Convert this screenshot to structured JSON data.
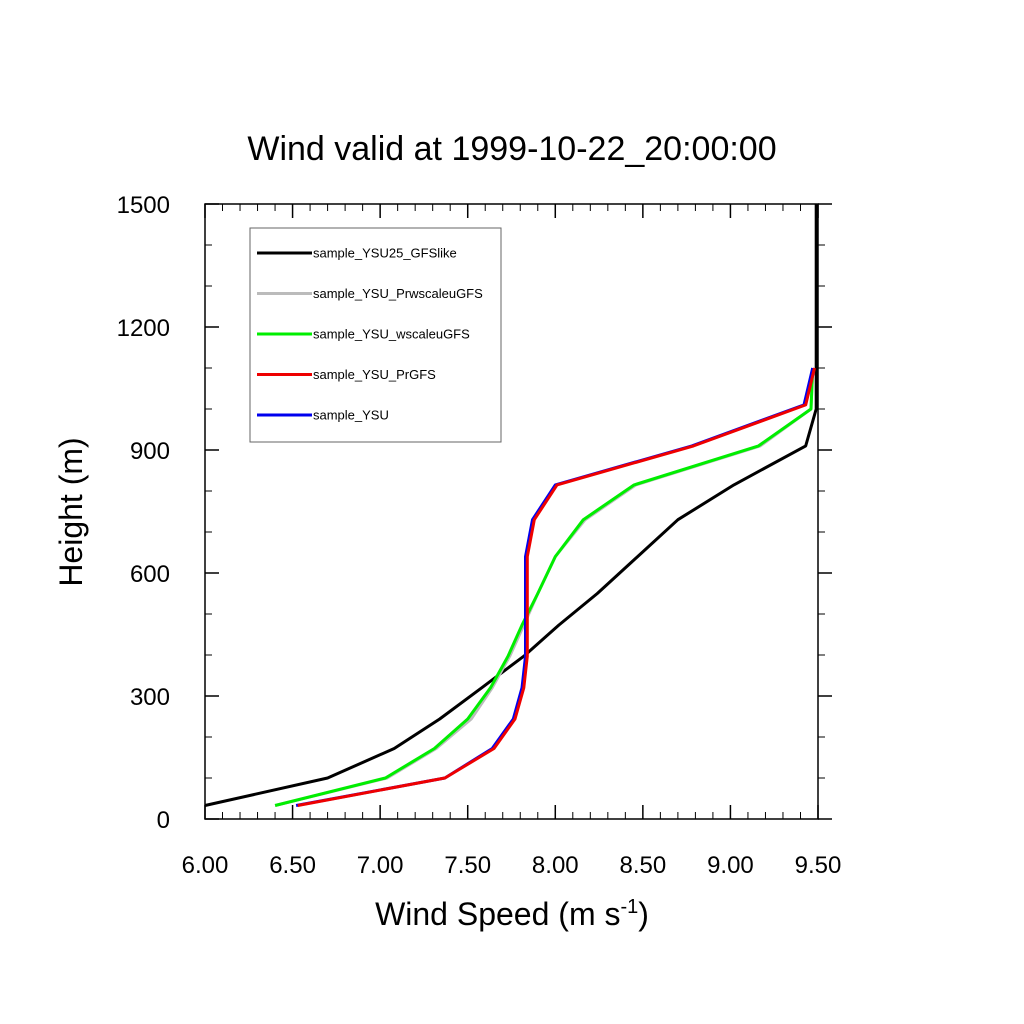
{
  "chart_data": {
    "type": "line",
    "title": "Wind valid at 1999-10-22_20:00:00",
    "xlabel": "Wind Speed (m s",
    "xlabel_sup": "-1",
    "xlabel_end": ")",
    "ylabel": "Height (m)",
    "xlim": [
      6.0,
      9.5
    ],
    "ylim": [
      0,
      1500
    ],
    "x_ticks": [
      6.0,
      6.5,
      7.0,
      7.5,
      8.0,
      8.5,
      9.0,
      9.5
    ],
    "x_tick_labels": [
      "6.00",
      "6.50",
      "7.00",
      "7.50",
      "8.00",
      "8.50",
      "9.00",
      "9.50"
    ],
    "y_ticks": [
      0,
      300,
      600,
      900,
      1200,
      1500
    ],
    "y_tick_labels": [
      "0",
      "300",
      "600",
      "900",
      "1200",
      "1500"
    ],
    "legend_position": "top-left",
    "grid": false,
    "series": [
      {
        "name": "sample_YSU25_GFSlike",
        "color": "#000000",
        "points": [
          [
            6.0,
            33
          ],
          [
            6.7,
            100
          ],
          [
            7.08,
            172
          ],
          [
            7.34,
            244
          ],
          [
            7.58,
            320
          ],
          [
            7.82,
            397
          ],
          [
            8.02,
            473
          ],
          [
            8.24,
            550
          ],
          [
            8.47,
            640
          ],
          [
            8.7,
            730
          ],
          [
            9.02,
            815
          ],
          [
            9.43,
            910
          ],
          [
            9.49,
            1000
          ],
          [
            9.49,
            1100
          ],
          [
            9.49,
            1200
          ],
          [
            9.49,
            1300
          ],
          [
            9.49,
            1400
          ],
          [
            9.49,
            1500
          ]
        ]
      },
      {
        "name": "sample_YSU_PrwscaleuGFS",
        "color": "#bbbbbb",
        "points": [
          [
            6.4,
            33
          ],
          [
            7.04,
            100
          ],
          [
            7.32,
            172
          ],
          [
            7.52,
            244
          ],
          [
            7.64,
            320
          ],
          [
            7.74,
            397
          ],
          [
            7.82,
            473
          ],
          [
            7.9,
            550
          ],
          [
            8.0,
            640
          ],
          [
            8.17,
            730
          ],
          [
            8.46,
            815
          ],
          [
            9.17,
            910
          ],
          [
            9.46,
            1000
          ],
          [
            9.47,
            1100
          ]
        ]
      },
      {
        "name": "sample_YSU_wscaleuGFS",
        "color": "#00ee00",
        "points": [
          [
            6.4,
            33
          ],
          [
            7.03,
            100
          ],
          [
            7.31,
            172
          ],
          [
            7.5,
            244
          ],
          [
            7.63,
            320
          ],
          [
            7.73,
            397
          ],
          [
            7.81,
            473
          ],
          [
            7.9,
            550
          ],
          [
            8.0,
            640
          ],
          [
            8.16,
            730
          ],
          [
            8.45,
            815
          ],
          [
            9.16,
            910
          ],
          [
            9.46,
            1000
          ],
          [
            9.47,
            1100
          ]
        ]
      },
      {
        "name": "sample_YSU_PrGFS",
        "color": "#ee0000",
        "points": [
          [
            6.53,
            33
          ],
          [
            7.37,
            100
          ],
          [
            7.65,
            172
          ],
          [
            7.77,
            244
          ],
          [
            7.82,
            320
          ],
          [
            7.84,
            397
          ],
          [
            7.84,
            473
          ],
          [
            7.84,
            550
          ],
          [
            7.84,
            640
          ],
          [
            7.88,
            730
          ],
          [
            8.01,
            815
          ],
          [
            8.79,
            910
          ],
          [
            9.43,
            1010
          ],
          [
            9.48,
            1100
          ]
        ]
      },
      {
        "name": "sample_YSU",
        "color": "#0000ee",
        "points": [
          [
            6.52,
            33
          ],
          [
            7.37,
            100
          ],
          [
            7.64,
            172
          ],
          [
            7.76,
            244
          ],
          [
            7.81,
            320
          ],
          [
            7.83,
            397
          ],
          [
            7.83,
            473
          ],
          [
            7.83,
            550
          ],
          [
            7.83,
            640
          ],
          [
            7.87,
            730
          ],
          [
            8.0,
            815
          ],
          [
            8.78,
            910
          ],
          [
            9.42,
            1010
          ],
          [
            9.47,
            1100
          ]
        ]
      }
    ]
  }
}
